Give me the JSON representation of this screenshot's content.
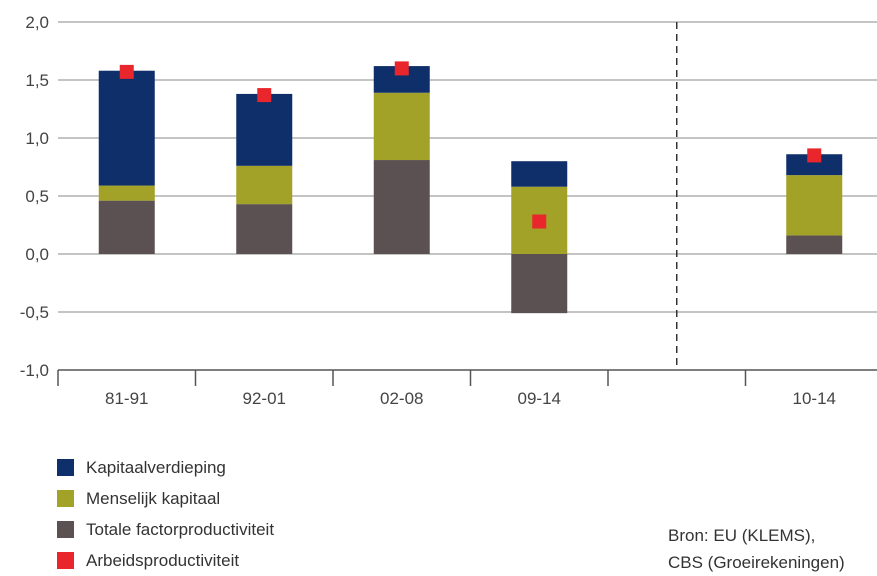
{
  "chart_data": {
    "type": "bar",
    "stacked": true,
    "categories": [
      "81-91",
      "92-01",
      "02-08",
      "09-14",
      "",
      "10-14"
    ],
    "ylim": [
      -1.0,
      2.0
    ],
    "yticks": [
      "2,0",
      "1,5",
      "1,0",
      "0,5",
      "0,0",
      "-0,5",
      "-1,0"
    ],
    "ytick_values": [
      2.0,
      1.5,
      1.0,
      0.5,
      0.0,
      -0.5,
      -1.0
    ],
    "grid": true,
    "legend_position": "bottom-left",
    "series": [
      {
        "name": "Totale factorproductiviteit",
        "color": "#5b5152",
        "values": [
          0.46,
          0.43,
          0.81,
          -0.51,
          null,
          0.16
        ]
      },
      {
        "name": "Menselijk kapitaal",
        "color": "#a2a128",
        "values": [
          0.13,
          0.33,
          0.58,
          0.58,
          null,
          0.52
        ]
      },
      {
        "name": "Kapitaalverdieping",
        "color": "#0f2f6b",
        "values": [
          0.99,
          0.62,
          0.23,
          0.22,
          null,
          0.18
        ]
      }
    ],
    "markers": {
      "name": "Arbeidsproductiviteit",
      "color": "#e8262c",
      "values": [
        1.57,
        1.37,
        1.6,
        0.28,
        null,
        0.85
      ]
    },
    "divider_after_category": 3
  },
  "legend": [
    {
      "label": "Kapitaalverdieping",
      "color": "#0f2f6b"
    },
    {
      "label": "Menselijk kapitaal",
      "color": "#a2a128"
    },
    {
      "label": "Totale factorproductiviteit",
      "color": "#5b5152"
    },
    {
      "label": "Arbeidsproductiviteit",
      "color": "#e8262c"
    }
  ],
  "source": {
    "line1": "Bron: EU (KLEMS),",
    "line2": "CBS (Groeirekeningen)"
  }
}
